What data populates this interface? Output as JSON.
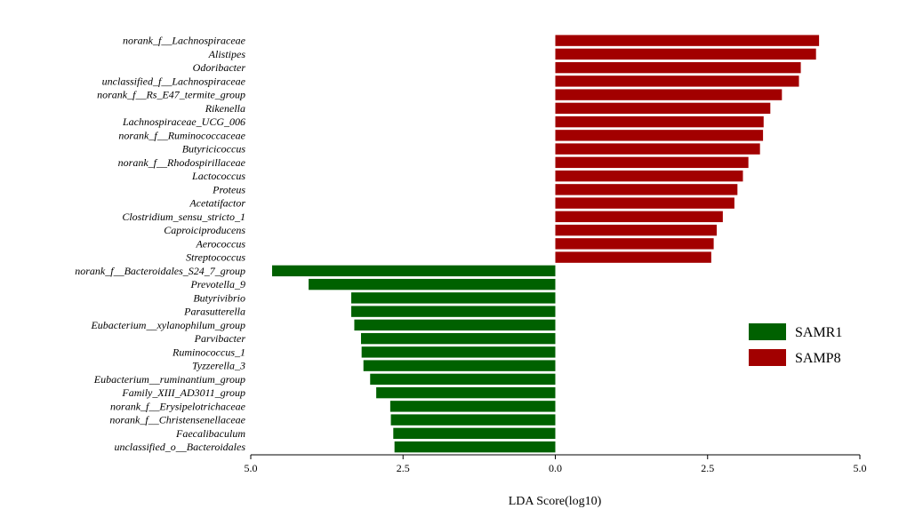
{
  "chart_data": {
    "type": "bar",
    "orientation": "horizontal",
    "xlabel": "LDA Score(log10)",
    "xlim": [
      -5,
      5
    ],
    "x_ticks": [
      -5,
      -2.5,
      0,
      2.5,
      5
    ],
    "x_tick_labels": [
      "5.0",
      "2.5",
      "0.0",
      "2.5",
      "5.0"
    ],
    "legend_placement": "right",
    "grid": false,
    "series": [
      {
        "name": "SAMR1",
        "color": "#006100"
      },
      {
        "name": "SAMP8",
        "color": "#a20000"
      }
    ],
    "bars": [
      {
        "category": "norank_f__Lachnospiraceae",
        "value": 4.33,
        "group": "SAMP8"
      },
      {
        "category": "Alistipes",
        "value": 4.28,
        "group": "SAMP8"
      },
      {
        "category": "Odoribacter",
        "value": 4.03,
        "group": "SAMP8"
      },
      {
        "category": "unclassified_f__Lachnospiraceae",
        "value": 4.0,
        "group": "SAMP8"
      },
      {
        "category": "norank_f__Rs_E47_termite_group",
        "value": 3.72,
        "group": "SAMP8"
      },
      {
        "category": "Rikenella",
        "value": 3.53,
        "group": "SAMP8"
      },
      {
        "category": "Lachnospiraceae_UCG_006",
        "value": 3.42,
        "group": "SAMP8"
      },
      {
        "category": "norank_f__Ruminococcaceae",
        "value": 3.41,
        "group": "SAMP8"
      },
      {
        "category": "Butyricicoccus",
        "value": 3.36,
        "group": "SAMP8"
      },
      {
        "category": "norank_f__Rhodospirillaceae",
        "value": 3.17,
        "group": "SAMP8"
      },
      {
        "category": "Lactococcus",
        "value": 3.08,
        "group": "SAMP8"
      },
      {
        "category": "Proteus",
        "value": 2.99,
        "group": "SAMP8"
      },
      {
        "category": "Acetatifactor",
        "value": 2.94,
        "group": "SAMP8"
      },
      {
        "category": "Clostridium_sensu_stricto_1",
        "value": 2.75,
        "group": "SAMP8"
      },
      {
        "category": "Caproiciproducens",
        "value": 2.65,
        "group": "SAMP8"
      },
      {
        "category": "Aerococcus",
        "value": 2.6,
        "group": "SAMP8"
      },
      {
        "category": "Streptococcus",
        "value": 2.56,
        "group": "SAMP8"
      },
      {
        "category": "norank_f__Bacteroidales_S24_7_group",
        "value": -4.65,
        "group": "SAMR1"
      },
      {
        "category": "Prevotella_9",
        "value": -4.05,
        "group": "SAMR1"
      },
      {
        "category": "Butyrivibrio",
        "value": -3.35,
        "group": "SAMR1"
      },
      {
        "category": "Parasutterella",
        "value": -3.35,
        "group": "SAMR1"
      },
      {
        "category": "Eubacterium__xylanophilum_group",
        "value": -3.3,
        "group": "SAMR1"
      },
      {
        "category": "Parvibacter",
        "value": -3.19,
        "group": "SAMR1"
      },
      {
        "category": "Ruminococcus_1",
        "value": -3.18,
        "group": "SAMR1"
      },
      {
        "category": "Tyzzerella_3",
        "value": -3.15,
        "group": "SAMR1"
      },
      {
        "category": "Eubacterium__ruminantium_group",
        "value": -3.04,
        "group": "SAMR1"
      },
      {
        "category": "Family_XIII_AD3011_group",
        "value": -2.94,
        "group": "SAMR1"
      },
      {
        "category": "norank_f__Erysipelotrichaceae",
        "value": -2.71,
        "group": "SAMR1"
      },
      {
        "category": "norank_f__Christensenellaceae",
        "value": -2.7,
        "group": "SAMR1"
      },
      {
        "category": "Faecalibaculum",
        "value": -2.66,
        "group": "SAMR1"
      },
      {
        "category": "unclassified_o__Bacteroidales",
        "value": -2.64,
        "group": "SAMR1"
      }
    ]
  }
}
